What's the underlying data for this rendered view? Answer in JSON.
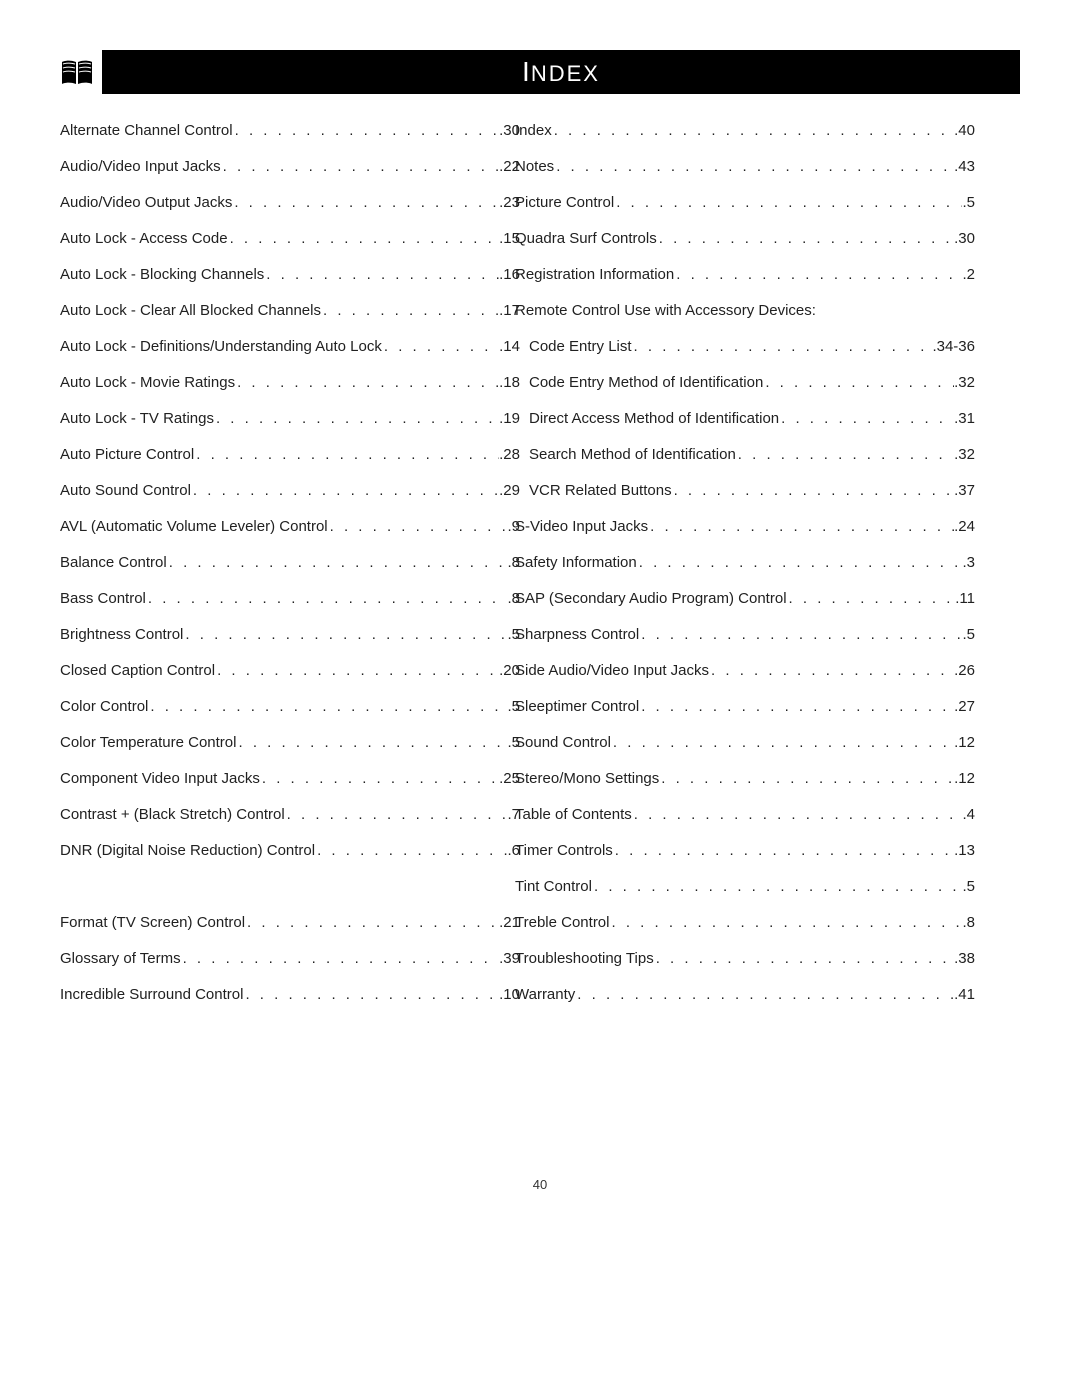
{
  "header": {
    "title_initial": "I",
    "title_rest": "NDEX"
  },
  "left_column": [
    {
      "label": "Alternate Channel Control",
      "page": ".30",
      "sub": false
    },
    {
      "label": "Audio/Video Input Jacks",
      "page": ".22",
      "sub": false
    },
    {
      "label": "Audio/Video Output Jacks",
      "page": ".23",
      "sub": false
    },
    {
      "label": "Auto Lock - Access Code",
      "page": ".15",
      "sub": false
    },
    {
      "label": "Auto Lock - Blocking Channels",
      "page": ".16",
      "sub": false
    },
    {
      "label": "Auto Lock - Clear All Blocked Channels",
      "page": ".17",
      "sub": false
    },
    {
      "label": "Auto Lock - Definitions/Understanding Auto Lock",
      "page": ".14",
      "sub": false
    },
    {
      "label": "Auto Lock - Movie Ratings",
      "page": ".18",
      "sub": false
    },
    {
      "label": "Auto Lock - TV Ratings",
      "page": ".19",
      "sub": false
    },
    {
      "label": "Auto Picture Control",
      "page": ".28",
      "sub": false
    },
    {
      "label": "Auto Sound Control",
      "page": ".29",
      "sub": false
    },
    {
      "label": "AVL (Automatic Volume Leveler) Control",
      "page": ".9",
      "sub": false
    },
    {
      "label": "Balance Control",
      "page": ".8",
      "sub": false
    },
    {
      "label": "Bass Control",
      "page": ".8",
      "sub": false
    },
    {
      "label": "Brightness Control",
      "page": ".5",
      "sub": false
    },
    {
      "label": "Closed Caption Control",
      "page": ".20",
      "sub": false
    },
    {
      "label": "Color Control",
      "page": ".5",
      "sub": false
    },
    {
      "label": "Color Temperature Control",
      "page": ".5",
      "sub": false
    },
    {
      "label": "Component Video Input Jacks",
      "page": ".25",
      "sub": false
    },
    {
      "label": "Contrast + (Black Stretch) Control",
      "page": ".7",
      "sub": false
    },
    {
      "label": "DNR (Digital Noise Reduction) Control",
      "page": ".6",
      "sub": false
    },
    {
      "blank": true
    },
    {
      "label": "Format (TV Screen) Control",
      "page": ".21",
      "sub": false
    },
    {
      "label": "Glossary of Terms",
      "page": ".39",
      "sub": false
    },
    {
      "label": "Incredible Surround Control",
      "page": ".10",
      "sub": false
    }
  ],
  "right_column": [
    {
      "label": "Index",
      "page": ".40",
      "sub": false
    },
    {
      "label": "Notes",
      "page": ".43",
      "sub": false
    },
    {
      "label": "Picture Control",
      "page": ".5",
      "sub": false
    },
    {
      "label": "Quadra Surf Controls",
      "page": ".30",
      "sub": false
    },
    {
      "label": "Registration Information",
      "page": ".2",
      "sub": false
    },
    {
      "label": "Remote Control Use with Accessory Devices:",
      "page": "",
      "sub": false,
      "nodots": true
    },
    {
      "label": "Code Entry List",
      "page": ".34-36",
      "sub": true
    },
    {
      "label": "Code Entry Method of Identification",
      "page": ".32",
      "sub": true
    },
    {
      "label": "Direct Access Method of Identification",
      "page": ".31",
      "sub": true
    },
    {
      "label": "Search Method of Identification",
      "page": ".32",
      "sub": true
    },
    {
      "label": "VCR Related Buttons",
      "page": ".37",
      "sub": true
    },
    {
      "label": "S-Video Input Jacks",
      "page": ".24",
      "sub": false
    },
    {
      "label": "Safety Information",
      "page": ".3",
      "sub": false
    },
    {
      "label": "SAP (Secondary Audio Program) Control",
      "page": ".11",
      "sub": false
    },
    {
      "label": "Sharpness Control",
      "page": ".5",
      "sub": false
    },
    {
      "label": "Side Audio/Video Input Jacks",
      "page": ".26",
      "sub": false
    },
    {
      "label": "Sleeptimer Control",
      "page": ".27",
      "sub": false
    },
    {
      "label": "Sound Control",
      "page": ".12",
      "sub": false
    },
    {
      "label": "Stereo/Mono Settings",
      "page": ".12",
      "sub": false
    },
    {
      "label": "Table of Contents",
      "page": ".4",
      "sub": false
    },
    {
      "label": "Timer Controls",
      "page": ".13",
      "sub": false
    },
    {
      "label": "Tint Control",
      "page": ".5",
      "sub": false
    },
    {
      "label": "Treble Control",
      "page": ".8",
      "sub": false
    },
    {
      "label": "Troubleshooting Tips",
      "page": ".38",
      "sub": false
    },
    {
      "label": "Warranty",
      "page": ".41",
      "sub": false
    }
  ],
  "footer": {
    "page_number": "40"
  },
  "style": {
    "dot_fill": " . . . . . . . . . . . . . . . . . . . . . . . . . . . . . . . . . . . . . . . . . . . . . . . . . . . . . . . . . . . . . . . ."
  }
}
